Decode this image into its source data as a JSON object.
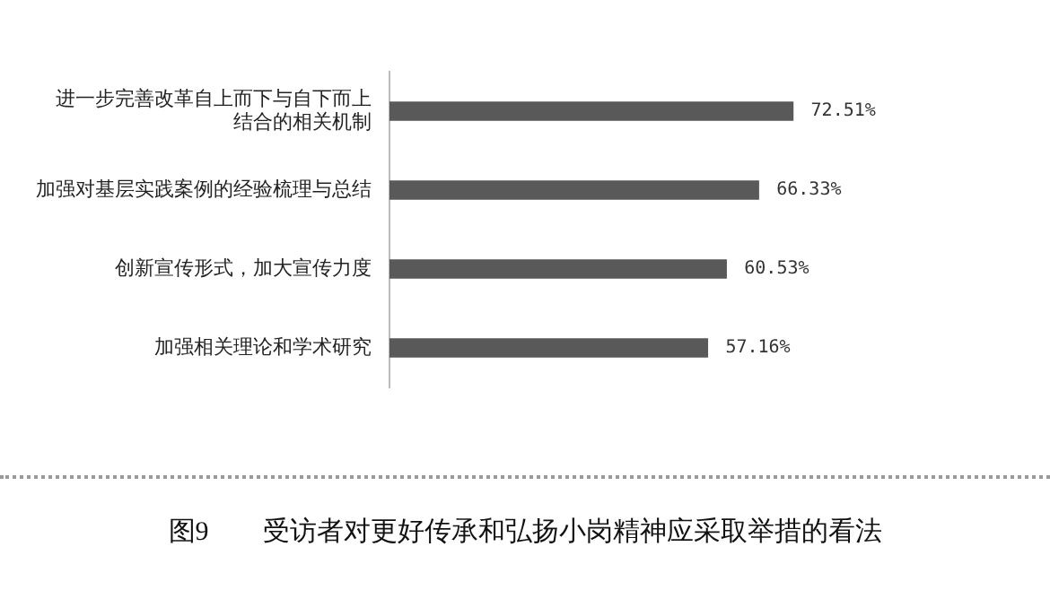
{
  "chart_data": {
    "type": "bar",
    "orientation": "horizontal",
    "title": "图9　　受访者对更好传承和弘扬小岗精神应采取举措的看法",
    "categories": [
      "进一步完善改革自上而下与自下而上结合的相关机制",
      "加强对基层实践案例的经验梳理与总结",
      "创新宣传形式，加大宣传力度",
      "加强相关理论和学术研究"
    ],
    "values": [
      72.51,
      66.33,
      60.53,
      57.16
    ],
    "value_labels": [
      "72.51%",
      "66.33%",
      "60.53%",
      "57.16%"
    ],
    "color": "#595959",
    "tick_labels": "y",
    "legend": false
  }
}
